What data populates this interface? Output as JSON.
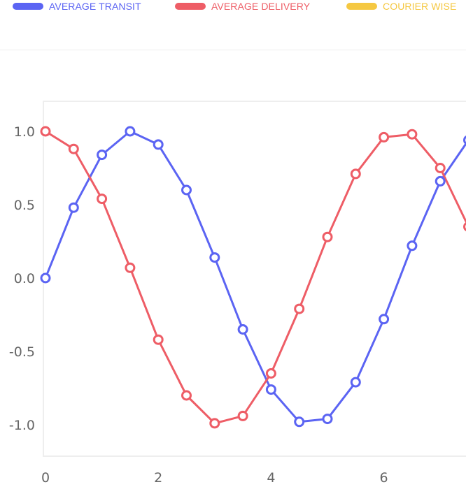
{
  "legend": {
    "items": [
      {
        "label": "AVERAGE TRANSIT",
        "color": "#5b64f3"
      },
      {
        "label": "AVERAGE DELIVERY",
        "color": "#ee5d66"
      },
      {
        "label": "COURIER WISE",
        "color": "#f5c842"
      }
    ]
  },
  "chart_data": {
    "type": "line",
    "title": "",
    "xlabel": "",
    "ylabel": "",
    "xlim": [
      0,
      7.4
    ],
    "ylim": [
      -1.2,
      1.2
    ],
    "grid": false,
    "legend_position": "top-left",
    "x_ticks": [
      "0",
      "2",
      "4",
      "6"
    ],
    "y_ticks": [
      "1.0",
      "0.5",
      "0.0",
      "-0.5",
      "-1.0"
    ],
    "x": [
      0,
      0.5,
      1,
      1.5,
      2,
      2.5,
      3,
      3.5,
      4,
      4.5,
      5,
      5.5,
      6,
      6.5,
      7,
      7.5
    ],
    "series": [
      {
        "name": "AVERAGE TRANSIT",
        "color": "#5b64f3",
        "values": [
          0.0,
          0.48,
          0.84,
          1.0,
          0.91,
          0.6,
          0.14,
          -0.35,
          -0.76,
          -0.98,
          -0.96,
          -0.71,
          -0.28,
          0.22,
          0.66,
          0.94
        ]
      },
      {
        "name": "AVERAGE DELIVERY",
        "color": "#ee5d66",
        "values": [
          1.0,
          0.88,
          0.54,
          0.07,
          -0.42,
          -0.8,
          -0.99,
          -0.94,
          -0.65,
          -0.21,
          0.28,
          0.71,
          0.96,
          0.98,
          0.75,
          0.35
        ]
      }
    ]
  }
}
